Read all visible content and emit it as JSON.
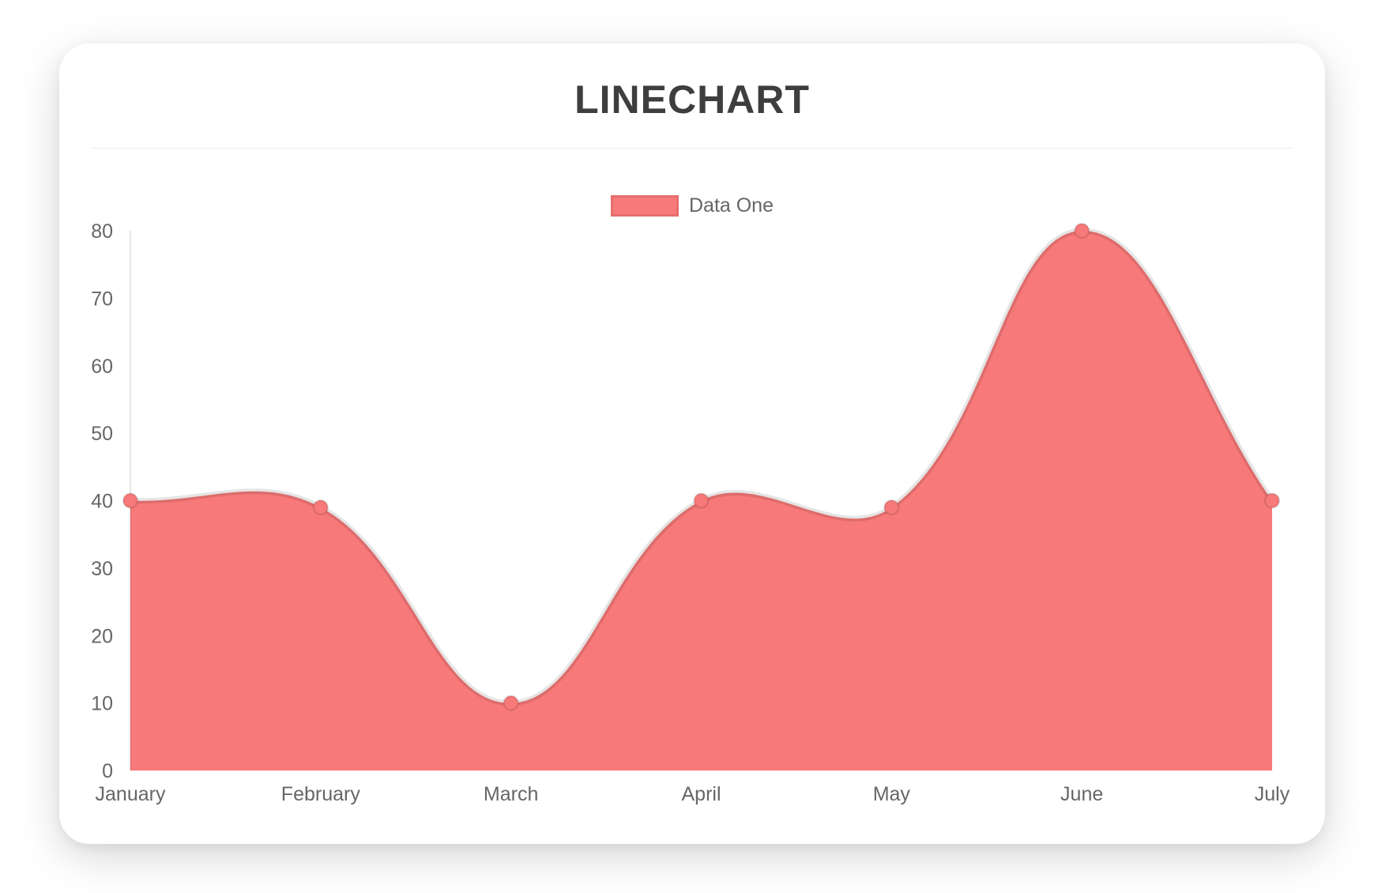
{
  "chart_data": {
    "type": "line",
    "title": "LINECHART",
    "categories": [
      "January",
      "February",
      "March",
      "April",
      "May",
      "June",
      "July"
    ],
    "series": [
      {
        "name": "Data One",
        "values": [
          40,
          39,
          10,
          40,
          39,
          80,
          40
        ]
      }
    ],
    "ylim": [
      0,
      80
    ],
    "ytick_step": 10,
    "grid": false,
    "legend_position": "top",
    "area_fill": true,
    "line_tension": 0.4,
    "colors": {
      "fill": "#f87979",
      "point": "#f87979",
      "line": "rgba(0,0,0,0.10)",
      "point_border": "rgba(0,0,0,0.10)",
      "axis": "rgba(0,0,0,0.10)",
      "tick_label": "#666666",
      "title": "#3e3e3e"
    }
  }
}
